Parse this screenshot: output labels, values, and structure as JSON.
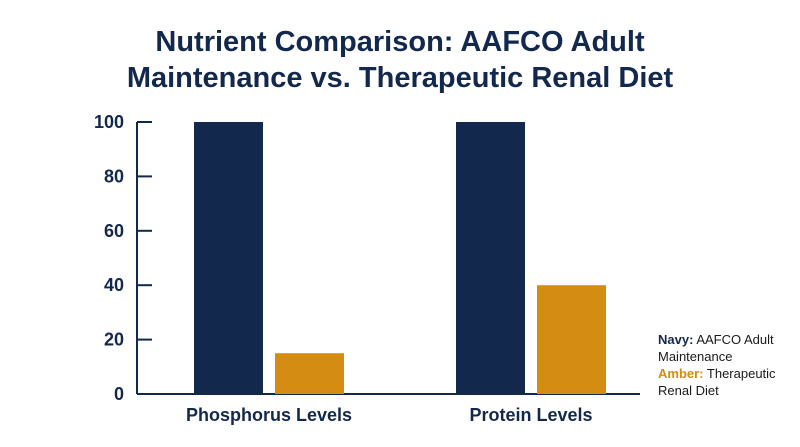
{
  "chart_data": {
    "type": "bar",
    "title_lines": [
      "Nutrient Comparison: AAFCO Adult",
      "Maintenance vs. Therapeutic Renal Diet"
    ],
    "categories": [
      "Phosphorus Levels",
      "Protein Levels"
    ],
    "series": [
      {
        "name": "AAFCO Adult Maintenance",
        "values": [
          100,
          100
        ],
        "color": "#13284d"
      },
      {
        "name": "Therapeutic Renal Diet",
        "values": [
          15,
          40
        ],
        "color": "#d58c12"
      }
    ],
    "ylim": [
      0,
      100
    ],
    "yticks": [
      0,
      20,
      40,
      60,
      80,
      100
    ],
    "grid": false,
    "legend_position": "bottom-right"
  },
  "legend": {
    "items": [
      {
        "key": "Navy:",
        "label": "AAFCO Adult Maintenance"
      },
      {
        "key": "Amber:",
        "label": "Therapeutic Renal Diet"
      }
    ]
  }
}
